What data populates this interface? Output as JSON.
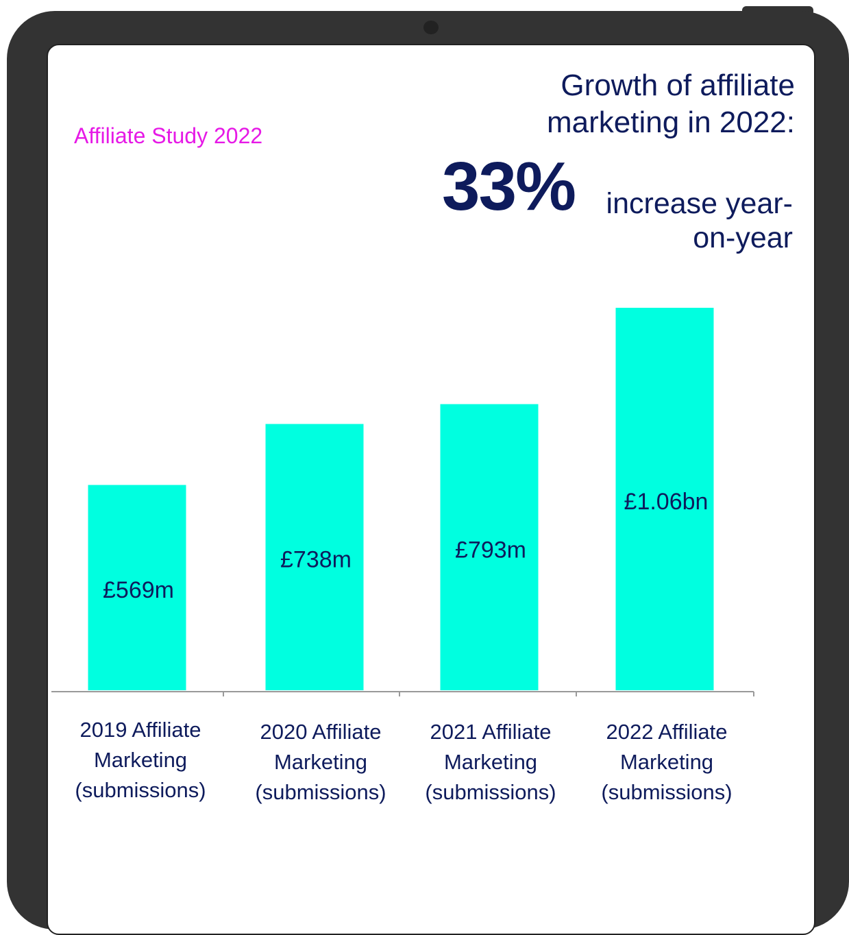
{
  "chart_data": {
    "type": "bar",
    "subtitle": "Affiliate Study 2022",
    "title": "Growth of affiliate marketing in 2022:",
    "annotations": [
      "33%",
      "increase year-on-year"
    ],
    "categories": [
      "2019 Affiliate Marketing (submissions)",
      "2020 Affiliate Marketing (submissions)",
      "2021 Affiliate Marketing (submissions)",
      "2022 Affiliate Marketing (submissions)"
    ],
    "values": [
      569,
      738,
      793,
      1060
    ],
    "value_labels": [
      "£569m",
      "£738m",
      "£793m",
      "£1.06bn"
    ],
    "color": "#00ffe0"
  }
}
